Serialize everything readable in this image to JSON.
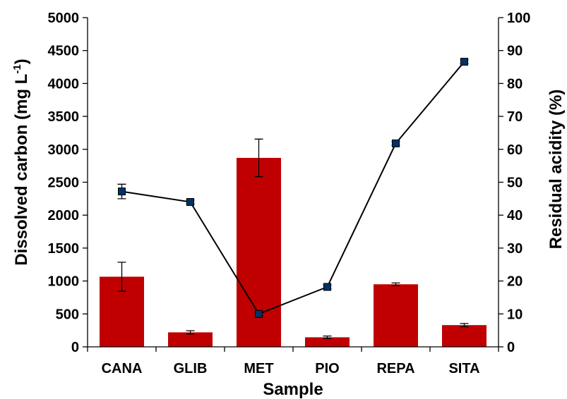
{
  "chart_data": {
    "type": "bar",
    "categories": [
      "CANA",
      "GLIB",
      "MET",
      "PIO",
      "REPA",
      "SITA"
    ],
    "series": [
      {
        "kind": "bar",
        "axis": "left",
        "color": "#C00000",
        "values": [
          1065,
          220,
          2870,
          145,
          950,
          330
        ],
        "errors": [
          220,
          25,
          285,
          20,
          20,
          25
        ]
      },
      {
        "kind": "line",
        "axis": "right",
        "color": "#003366",
        "values": [
          47.2,
          44.0,
          10.0,
          18.2,
          61.8,
          86.6
        ],
        "errors": [
          2.2,
          0.6,
          0.5,
          0.6,
          0.6,
          0.6
        ]
      }
    ],
    "title": "",
    "xlabel": "Sample",
    "ylabel": "Dissolved carbon (mg L",
    "ylabel_sup": "-1",
    "ylabel_close": ")",
    "ylabel_right": "Residual acidity (%)",
    "ylim": [
      0,
      5000
    ],
    "ylim_right": [
      0,
      100
    ],
    "yticks": [
      "0",
      "500",
      "1000",
      "1500",
      "2000",
      "2500",
      "3000",
      "3500",
      "4000",
      "4500",
      "5000"
    ],
    "yticks_right": [
      "0",
      "10",
      "20",
      "30",
      "40",
      "50",
      "60",
      "70",
      "80",
      "90",
      "100"
    ],
    "grid": false,
    "legend": "none"
  }
}
